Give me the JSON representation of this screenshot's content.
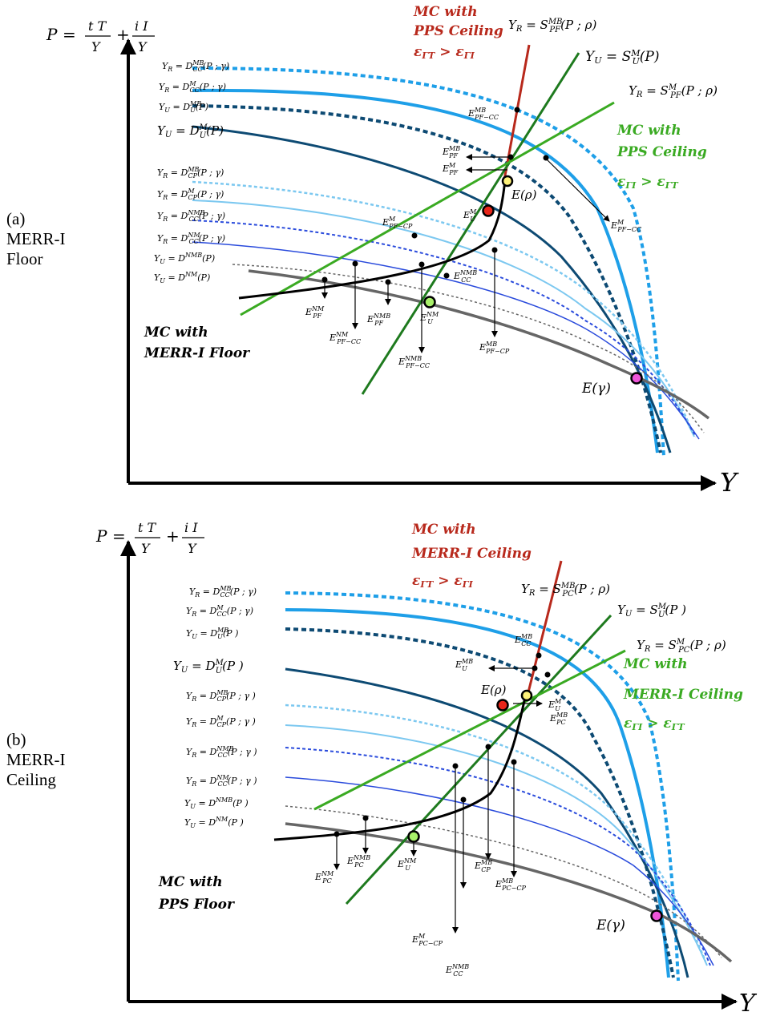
{
  "panels": [
    {
      "id": "a",
      "panel_letter": "(a)",
      "panel_title_1": "MERR-I",
      "panel_title_2": "Floor",
      "y_axis": "P = tT/Y + iI/Y",
      "x_axis": "Y",
      "demand_labels": [
        "Y_R = D^MB_CC(P ; γ)",
        "Y_R = D^M_CC(P ; γ)",
        "Y_U = D^MB_U(P)",
        "Y_U = D^M_U(P)",
        "Y_R = D^MB_CP(P ; γ)",
        "Y_R = D^M_CP(P ; γ)",
        "Y_R = D^NMB_CC(P ; γ)",
        "Y_R = D^NM_CC(P ; γ)",
        "Y_U = D^NMB(P)",
        "Y_U = D^NM(P)"
      ],
      "supply_labels": [
        "Y_R = S^MB_PF(P ; ρ)",
        "Y_U = S^M_U(P)",
        "Y_R = S^M_PF(P ; ρ)"
      ],
      "mc_red": [
        "MC with",
        "PPS Ceiling",
        "εΓT > εΓI"
      ],
      "mc_green": [
        "MC with",
        "PPS Ceiling",
        "εΓI > εΓT"
      ],
      "mc_black": [
        "MC with",
        "MERR-I Floor"
      ],
      "eq_labels": [
        "E^MB_PF−CC",
        "E^MB_PF",
        "E^M_PF",
        "E(ρ)",
        "E^M_U",
        "E^M_PF−CC",
        "E^M_PF−CP",
        "E^NMB_CC",
        "E^NM_PF",
        "E^NM_PF−CC",
        "E^NMB_PF",
        "E^NM_U",
        "E^NMB_PF−CC",
        "E^MB_PF−CP",
        "E(γ)"
      ]
    },
    {
      "id": "b",
      "panel_letter": "(b)",
      "panel_title_1": "MERR-I",
      "panel_title_2": "Ceiling",
      "y_axis": "P = tT/Y + iI/Y",
      "x_axis": "Y",
      "demand_labels": [
        "Y_R = D^MB_CC(P ; γ)",
        "Y_R = D^M_CC(P ; γ)",
        "Y_U = D^MB_U(P)",
        "Y_U = D^M_U(P)",
        "Y_R = D^MB_CP(P ; γ)",
        "Y_R = D^M_CP(P ; γ)",
        "Y_R = D^NMB_CC(P ; γ)",
        "Y_R = D^NM_CC(P ; γ)",
        "Y_U = D^NMB(P)",
        "Y_U = D^NM(P)"
      ],
      "supply_labels": [
        "Y_R = S^MB_PC(P ; ρ)",
        "Y_U = S^M_U(P)",
        "Y_R = S^M_PC(P ; ρ)"
      ],
      "mc_red": [
        "MC with",
        "MERR-I Ceiling",
        "εΓT > εΓI"
      ],
      "mc_green": [
        "MC with",
        "MERR-I Ceiling",
        "εΓI > εΓT"
      ],
      "mc_black": [
        "MC with",
        "PPS Floor"
      ],
      "eq_labels": [
        "E^MB_CC",
        "E^MB_U",
        "E(ρ)",
        "E^M_U",
        "E^MB_PC",
        "E^NM_PC",
        "E^NMB_PC",
        "E^NM_U",
        "E^MB_CP",
        "E^MB_PC−CP",
        "E^M_PC−CP",
        "E^NMB_CC",
        "E(γ)"
      ]
    }
  ],
  "colors": {
    "red": "#b8291c",
    "green_dark": "#1e7a1e",
    "green_light": "#3aaa22",
    "navy": "#0d4a73",
    "blue_bright": "#1e9fe8",
    "blue_light": "#7cc8f0",
    "blue_mid": "#2a4bdc",
    "grey": "#666666",
    "yellow": "#fff27a",
    "red_dot": "#e8261a",
    "green_dot": "#a8f06a",
    "magenta_dot": "#ee55d8"
  }
}
